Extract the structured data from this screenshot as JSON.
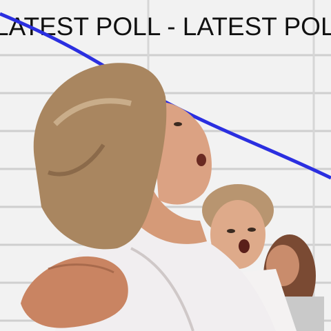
{
  "ticker": {
    "text": "LATEST POLL - LATEST POLL - LATEST POLL"
  },
  "colors": {
    "background": "#f2f2f2",
    "grid_line": "#cfcfcf",
    "trend_line": "#2b2fe0",
    "ticker_text": "#111111",
    "jacket": "#f1eef0",
    "hair": "#a98660",
    "skin": "#d59a78"
  },
  "icons": {
    "trend": "downward-trend-line"
  }
}
